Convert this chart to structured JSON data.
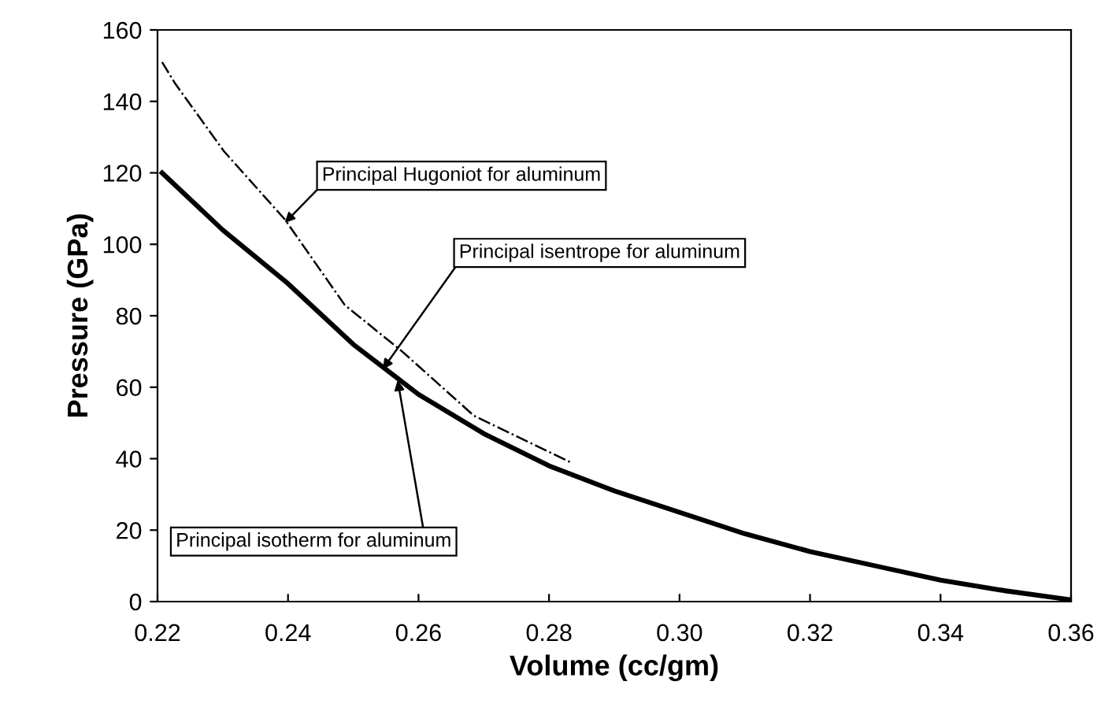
{
  "chart_data": {
    "type": "line",
    "xlabel": "Volume (cc/gm)",
    "ylabel": "Pressure (GPa)",
    "xlim": [
      0.22,
      0.36
    ],
    "xticks": [
      {
        "value": 0.22,
        "label": "0.22"
      },
      {
        "value": 0.24,
        "label": "0.24"
      },
      {
        "value": 0.26,
        "label": "0.26"
      },
      {
        "value": 0.28,
        "label": "0.28"
      },
      {
        "value": 0.3,
        "label": "0.30"
      },
      {
        "value": 0.32,
        "label": "0.32"
      },
      {
        "value": 0.34,
        "label": "0.34"
      },
      {
        "value": 0.36,
        "label": "0.36"
      }
    ],
    "ylim": [
      0,
      160
    ],
    "yticks": [
      0,
      20,
      40,
      60,
      80,
      100,
      120,
      140,
      160
    ],
    "grid": false,
    "legend": false,
    "marker": "none",
    "series": [
      {
        "color": "#000000",
        "line_style": "solid",
        "x": [
          0.2207,
          0.23,
          0.24,
          0.25,
          0.26,
          0.27,
          0.28,
          0.29,
          0.3,
          0.31,
          0.32,
          0.33,
          0.34,
          0.35,
          0.36
        ],
        "values": [
          120,
          104,
          89,
          72,
          58,
          47,
          38,
          31,
          25,
          19,
          14,
          10,
          6,
          3,
          0.5
        ]
      },
      {
        "color": "#000000",
        "line_style": "dashdot",
        "x": [
          0.2207,
          0.2227,
          0.2302,
          0.2395,
          0.2487,
          0.2575,
          0.2685,
          0.2833
        ],
        "values": [
          151,
          145,
          126,
          107,
          83,
          70,
          52,
          39
        ]
      }
    ],
    "annotations": [
      {
        "text": "Principal Hugoniot for aluminum",
        "x": 0.2395,
        "y": 106
      },
      {
        "text": "Principal isentrope for aluminum",
        "x": 0.2545,
        "y": 65
      },
      {
        "text": "Principal isotherm for aluminum",
        "x": 0.2568,
        "y": 62
      }
    ]
  }
}
